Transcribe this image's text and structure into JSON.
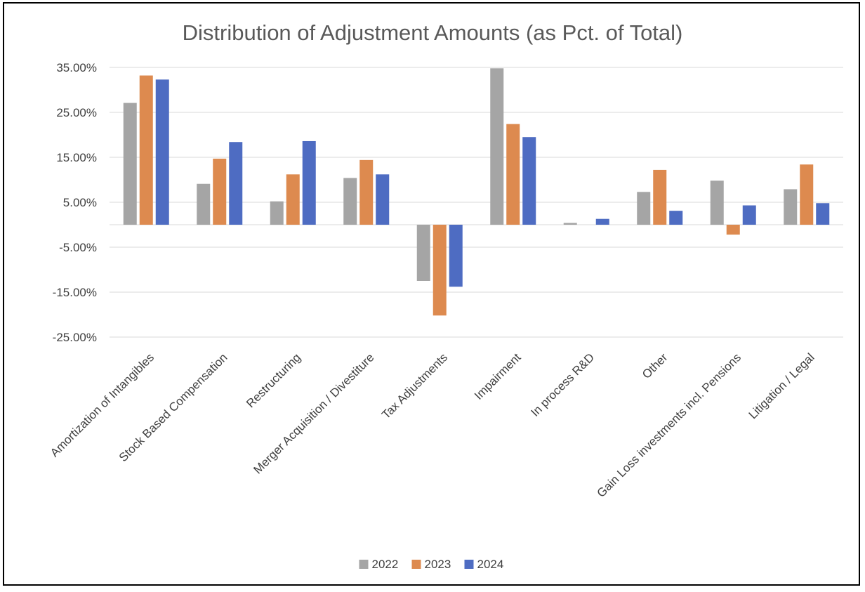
{
  "chart_data": {
    "type": "bar",
    "title": "Distribution of Adjustment Amounts (as Pct. of Total)",
    "xlabel": "",
    "ylabel": "",
    "categories": [
      "Amortization of Intangibles",
      "Stock Based Compensation",
      "Restructuring",
      "Merger Acquisition / Divestiture",
      "Tax Adjustments",
      "Impairment",
      "In process R&D",
      "Other",
      "Gain Loss investments incl. Pensions",
      "Litigation / Legal"
    ],
    "series": [
      {
        "name": "2022",
        "color": "#a5a5a5",
        "values": [
          27.1,
          9.1,
          5.2,
          10.4,
          -12.5,
          34.8,
          0.4,
          7.3,
          9.8,
          7.9
        ]
      },
      {
        "name": "2023",
        "color": "#dd8a4f",
        "values": [
          33.2,
          14.7,
          11.2,
          14.4,
          -20.2,
          22.4,
          0.0,
          12.2,
          -2.2,
          13.4
        ]
      },
      {
        "name": "2024",
        "color": "#4e6cc2",
        "values": [
          32.3,
          18.4,
          18.6,
          11.2,
          -13.8,
          19.5,
          1.3,
          3.1,
          4.3,
          4.8
        ]
      }
    ],
    "ylim": [
      -25,
      35
    ],
    "yticks": [
      "35.00%",
      "25.00%",
      "15.00%",
      "5.00%",
      "-5.00%",
      "-15.00%",
      "-25.00%"
    ],
    "ytick_values": [
      35,
      25,
      15,
      5,
      -5,
      -15,
      -25
    ],
    "grid": true,
    "legend": "bottom"
  }
}
